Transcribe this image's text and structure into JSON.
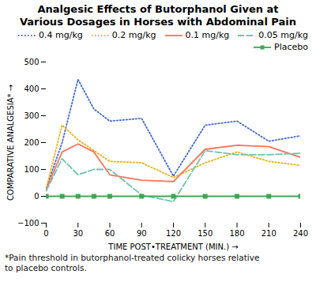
{
  "chart_data": {
    "type": "line",
    "title": "Analgesic Effects of Butorphanol Given at\nVarious Dosages in Horses with Abdominal Pain",
    "x_label": "TIME POST•TREATMENT (MIN.)",
    "y_label": "COMPARATIVE ANALGESIA*",
    "footnote": "*Pain threshold in butorphanol-treated colicky horses relative\nto placebo controls.",
    "x": [
      0,
      15,
      30,
      45,
      60,
      90,
      120,
      150,
      180,
      210,
      240
    ],
    "series": [
      {
        "name": "0.4 mg/kg",
        "line_style": "dotted",
        "values": [
          30,
          200,
          435,
          325,
          280,
          290,
          75,
          265,
          280,
          205,
          225
        ]
      },
      {
        "name": "0.2 mg/kg",
        "line_style": "dotted",
        "values": [
          30,
          265,
          210,
          170,
          130,
          125,
          70,
          125,
          165,
          130,
          115
        ]
      },
      {
        "name": "0.1 mg/kg",
        "line_style": "solid",
        "values": [
          25,
          165,
          195,
          165,
          80,
          60,
          55,
          175,
          190,
          185,
          145
        ]
      },
      {
        "name": "0.05 mg/kg",
        "line_style": "dashed",
        "values": [
          20,
          140,
          80,
          100,
          100,
          5,
          -20,
          170,
          155,
          155,
          160
        ]
      },
      {
        "name": "Placebo",
        "line_style": "solid",
        "marker": "square",
        "values": [
          0,
          0,
          0,
          0,
          0,
          0,
          0,
          0,
          0,
          0,
          0
        ]
      }
    ],
    "xlim": [
      0,
      240
    ],
    "ylim": [
      -100,
      500
    ],
    "xticks": [
      0,
      30,
      60,
      90,
      120,
      150,
      180,
      210,
      240
    ],
    "yticks": [
      -100,
      0,
      100,
      200,
      300,
      400,
      500
    ],
    "grid": false,
    "legend": "upper right"
  }
}
